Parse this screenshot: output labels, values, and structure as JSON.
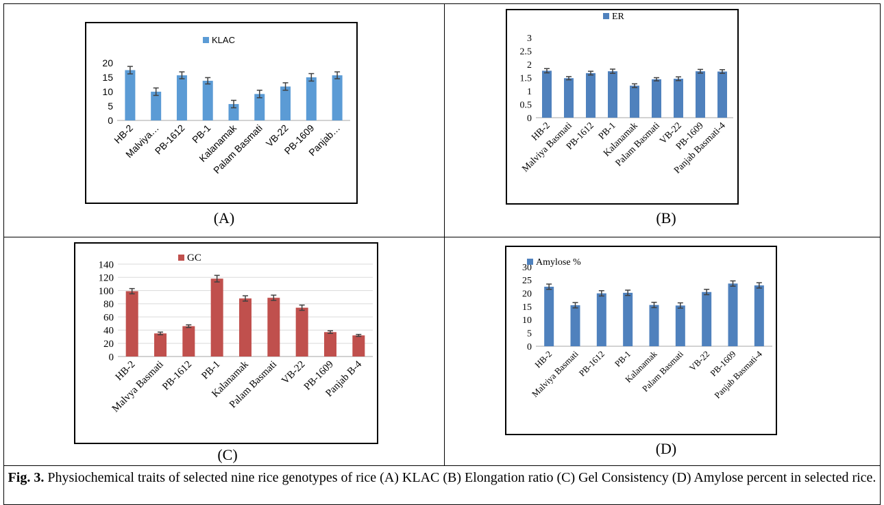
{
  "panels": [
    {
      "label": "(A)"
    },
    {
      "label": "(B)"
    },
    {
      "label": "(C)"
    },
    {
      "label": "(D)"
    }
  ],
  "caption": {
    "prefix": "Fig. 3.",
    "text": " Physiochemical traits of selected nine rice genotypes of rice (A) KLAC (B) Elongation ratio (C) Gel Consistency (D) Amylose percent in selected rice."
  },
  "chart_data": [
    {
      "type": "bar",
      "categories": [
        "HB-2",
        "Malviya…",
        "PB-1612",
        "PB-1",
        "Kalanamak",
        "Palam Basmati",
        "VB-22",
        "PB-1609",
        "Panjab…"
      ],
      "series": [
        {
          "name": "KLAC",
          "values": [
            17.5,
            10,
            15.7,
            13.8,
            5.7,
            9.2,
            11.8,
            15,
            15.7
          ],
          "errors": [
            1.3,
            1.3,
            1.2,
            1.1,
            1.3,
            1.3,
            1.3,
            1.3,
            1.2
          ]
        }
      ],
      "yticks": [
        "0",
        "5",
        "10",
        "15",
        "20"
      ],
      "ylim": [
        0,
        20
      ],
      "legend": "top",
      "color": "#5b9bd5"
    },
    {
      "type": "bar",
      "categories": [
        "HB-2",
        "Malviya Basmati",
        "PB-1612",
        "PB-1",
        "Kalanamak",
        "Palam Basmati",
        "VB-22",
        "PB-1609",
        "Panjab Basmati-4"
      ],
      "series": [
        {
          "name": "ER",
          "values": [
            1.76,
            1.48,
            1.67,
            1.74,
            1.2,
            1.44,
            1.46,
            1.74,
            1.73
          ],
          "errors": [
            0.08,
            0.06,
            0.07,
            0.08,
            0.07,
            0.06,
            0.07,
            0.07,
            0.07
          ]
        }
      ],
      "yticks": [
        "0",
        "0.5",
        "1",
        "1.5",
        "2",
        "2.5",
        "3"
      ],
      "ylim": [
        0,
        3
      ],
      "legend": "top",
      "color": "#4f81bd"
    },
    {
      "type": "bar",
      "categories": [
        "HB-2",
        "Malvya Basmati",
        "PB-1612",
        "PB-1",
        "Kalanamak",
        "Palam Basmati",
        "VB-22",
        "PB-1609",
        "Panjab B-4"
      ],
      "series": [
        {
          "name": "GC",
          "values": [
            99,
            35,
            46,
            118,
            88,
            89,
            74,
            37,
            32
          ],
          "errors": [
            4,
            2,
            2,
            5,
            4,
            4,
            4,
            2,
            1.5
          ]
        }
      ],
      "yticks": [
        "0",
        "20",
        "40",
        "60",
        "80",
        "100",
        "120",
        "140"
      ],
      "ylim": [
        0,
        140
      ],
      "legend": "top",
      "color": "#c0504d"
    },
    {
      "type": "bar",
      "categories": [
        "HB-2",
        "Malviya Basmati",
        "PB-1612",
        "PB-1",
        "Kalanamak",
        "Palam Basmati",
        "VB-22",
        "PB-1609",
        "Panjab Basmati-4"
      ],
      "series": [
        {
          "name": "Amylose %",
          "values": [
            22.5,
            15.5,
            20,
            20.2,
            15.6,
            15.4,
            20.5,
            23.7,
            23
          ],
          "errors": [
            1,
            1,
            1,
            1,
            1,
            1,
            1,
            1,
            1
          ]
        }
      ],
      "yticks": [
        "0",
        "5",
        "10",
        "15",
        "20",
        "25",
        "30"
      ],
      "ylim": [
        0,
        30
      ],
      "legend": "top-left",
      "color": "#4f81bd"
    }
  ]
}
